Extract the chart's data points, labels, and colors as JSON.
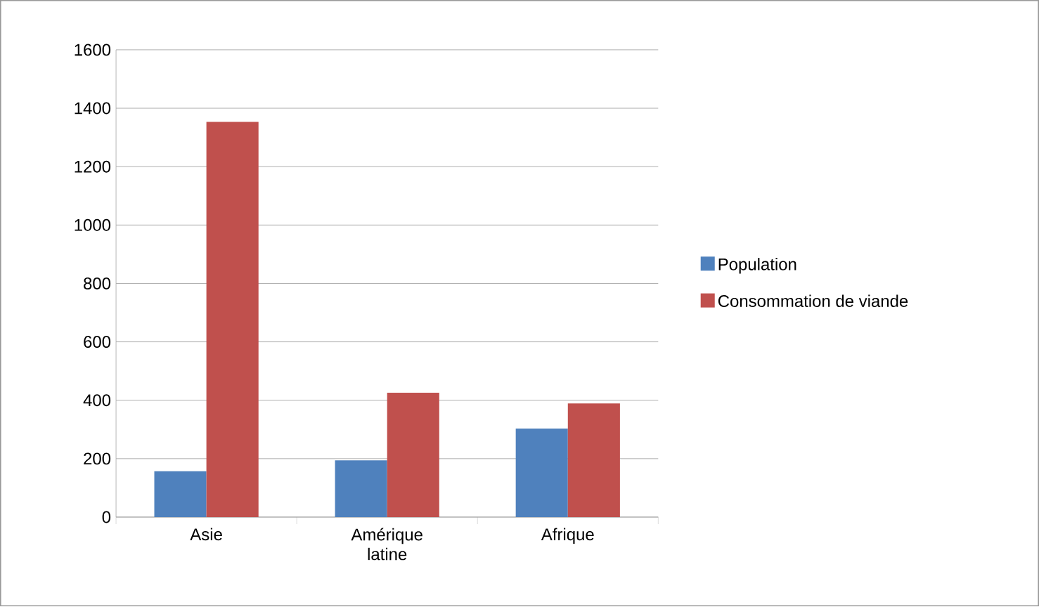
{
  "chart_data": {
    "type": "bar",
    "categories": [
      "Asie",
      "Amérique latine",
      "Afrique"
    ],
    "series": [
      {
        "name": "Population",
        "color": "#4f81bd",
        "values": [
          157,
          194,
          303
        ]
      },
      {
        "name": "Consommation de viande",
        "color": "#c0504d",
        "values": [
          1353,
          426,
          389
        ]
      }
    ],
    "ylim": [
      0,
      1600
    ],
    "yticks": [
      0,
      200,
      400,
      600,
      800,
      1000,
      1200,
      1400,
      1600
    ],
    "grid": "y",
    "legend": "right"
  }
}
